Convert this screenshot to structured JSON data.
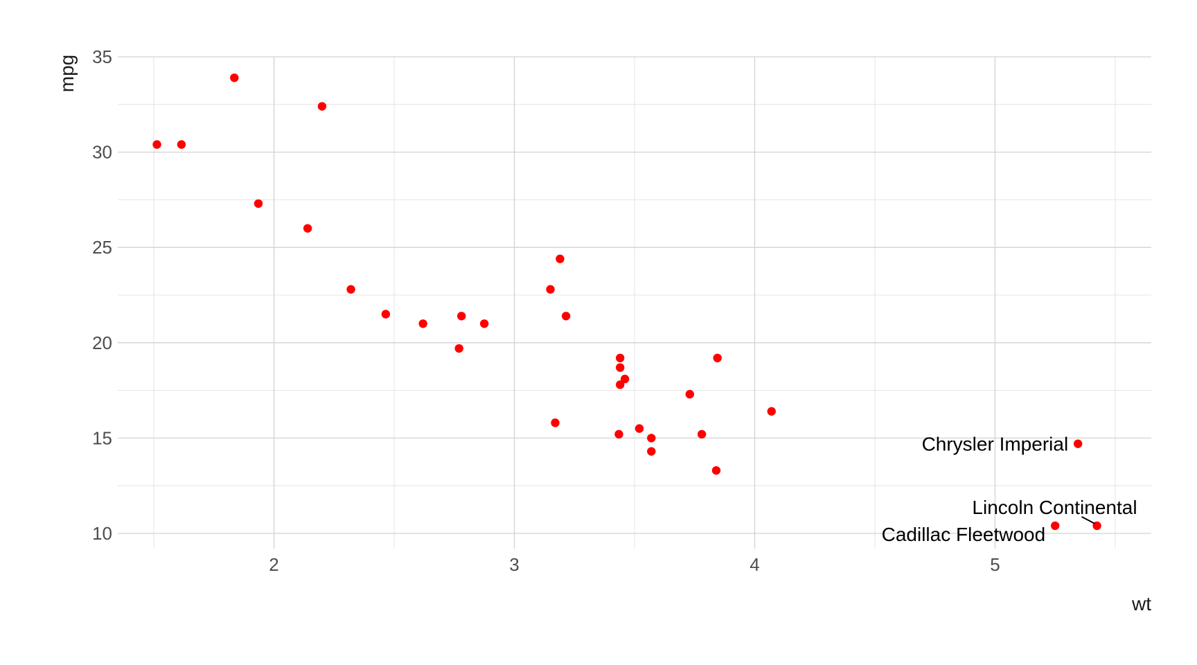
{
  "chart_data": {
    "type": "scatter",
    "title": "",
    "xlabel": "wt",
    "ylabel": "mpg",
    "xlim": [
      1.35,
      5.65
    ],
    "ylim": [
      9.2,
      35
    ],
    "x_ticks": [
      2,
      3,
      4,
      5
    ],
    "y_ticks": [
      10,
      15,
      20,
      25,
      30,
      35
    ],
    "x_tick_labels": [
      "2",
      "3",
      "4",
      "5"
    ],
    "y_tick_labels": [
      "10",
      "15",
      "20",
      "25",
      "30",
      "35"
    ],
    "grid": true,
    "legend": "none",
    "point_color": "#ff0000",
    "points": [
      {
        "x": 2.62,
        "y": 21.0
      },
      {
        "x": 2.875,
        "y": 21.0
      },
      {
        "x": 2.32,
        "y": 22.8
      },
      {
        "x": 3.215,
        "y": 21.4
      },
      {
        "x": 3.44,
        "y": 18.7
      },
      {
        "x": 3.46,
        "y": 18.1
      },
      {
        "x": 3.57,
        "y": 14.3
      },
      {
        "x": 3.19,
        "y": 24.4
      },
      {
        "x": 3.15,
        "y": 22.8
      },
      {
        "x": 3.44,
        "y": 19.2
      },
      {
        "x": 3.44,
        "y": 17.8
      },
      {
        "x": 4.07,
        "y": 16.4
      },
      {
        "x": 3.73,
        "y": 17.3
      },
      {
        "x": 3.78,
        "y": 15.2
      },
      {
        "x": 5.25,
        "y": 10.4
      },
      {
        "x": 5.424,
        "y": 10.4
      },
      {
        "x": 5.345,
        "y": 14.7
      },
      {
        "x": 2.2,
        "y": 32.4
      },
      {
        "x": 1.615,
        "y": 30.4
      },
      {
        "x": 1.835,
        "y": 33.9
      },
      {
        "x": 2.465,
        "y": 21.5
      },
      {
        "x": 3.52,
        "y": 15.5
      },
      {
        "x": 3.435,
        "y": 15.2
      },
      {
        "x": 3.84,
        "y": 13.3
      },
      {
        "x": 3.845,
        "y": 19.2
      },
      {
        "x": 1.935,
        "y": 27.3
      },
      {
        "x": 2.14,
        "y": 26.0
      },
      {
        "x": 1.513,
        "y": 30.4
      },
      {
        "x": 3.17,
        "y": 15.8
      },
      {
        "x": 2.77,
        "y": 19.7
      },
      {
        "x": 3.57,
        "y": 15.0
      },
      {
        "x": 2.78,
        "y": 21.4
      }
    ],
    "annotations": [
      {
        "text": "Chrysler Imperial",
        "x": 5.345,
        "y": 14.7
      },
      {
        "text": "Lincoln Continental",
        "x": 5.424,
        "y": 10.4
      },
      {
        "text": "Cadillac Fleetwood",
        "x": 5.25,
        "y": 10.4
      }
    ]
  }
}
